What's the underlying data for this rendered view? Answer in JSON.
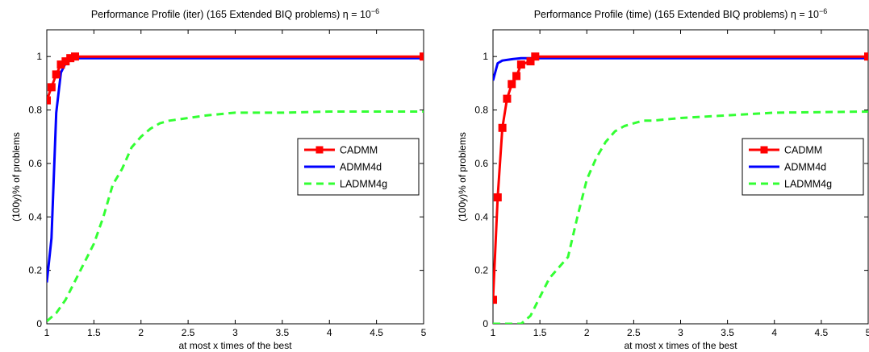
{
  "chart_data": [
    {
      "type": "line",
      "title": "Performance Profile (iter) (165 Extended BIQ problems) η = 10",
      "title_superscript": "−6",
      "xlabel": "at most x times of the best",
      "ylabel": "(100y)% of problems",
      "xlim": [
        1,
        5
      ],
      "ylim": [
        0,
        1.1
      ],
      "xticks": [
        "1",
        "1.5",
        "2",
        "2.5",
        "3",
        "3.5",
        "4",
        "4.5",
        "5"
      ],
      "yticks": [
        "0",
        "0.2",
        "0.4",
        "0.6",
        "0.8",
        "1"
      ],
      "xtick_values": [
        1,
        1.5,
        2,
        2.5,
        3,
        3.5,
        4,
        4.5,
        5
      ],
      "ytick_values": [
        0,
        0.2,
        0.4,
        0.6,
        0.8,
        1
      ],
      "grid": false,
      "legend_position": "middle-right",
      "series": [
        {
          "name": "CADMM",
          "color": "#ff0000",
          "marker": "square",
          "x": [
            1,
            1.05,
            1.1,
            1.15,
            1.2,
            1.25,
            1.3,
            5
          ],
          "y": [
            0.836,
            0.885,
            0.933,
            0.97,
            0.982,
            0.994,
            1.0,
            1.0
          ]
        },
        {
          "name": "ADMM4d",
          "color": "#0000ff",
          "marker": "none",
          "x": [
            1,
            1.05,
            1.1,
            1.15,
            1.2,
            1.25,
            1.3,
            5
          ],
          "y": [
            0.155,
            0.32,
            0.79,
            0.94,
            0.975,
            0.988,
            0.994,
            0.994
          ]
        },
        {
          "name": "LADMM4g",
          "color": "#33ff33",
          "marker": "none",
          "dashed": true,
          "x": [
            1,
            1.1,
            1.2,
            1.3,
            1.4,
            1.5,
            1.6,
            1.7,
            1.8,
            1.9,
            2.0,
            2.1,
            2.2,
            2.3,
            2.5,
            2.7,
            3.0,
            3.5,
            4.0,
            5.0
          ],
          "y": [
            0.01,
            0.04,
            0.09,
            0.16,
            0.23,
            0.3,
            0.4,
            0.52,
            0.58,
            0.66,
            0.7,
            0.73,
            0.75,
            0.76,
            0.77,
            0.78,
            0.79,
            0.79,
            0.794,
            0.794
          ]
        }
      ]
    },
    {
      "type": "line",
      "title": "Performance Profile (time) (165 Extended BIQ problems) η = 10",
      "title_superscript": "−6",
      "xlabel": "at most x times of the best",
      "ylabel": "(100y)% of problems",
      "xlim": [
        1,
        5
      ],
      "ylim": [
        0,
        1.1
      ],
      "xticks": [
        "1",
        "1.5",
        "2",
        "2.5",
        "3",
        "3.5",
        "4",
        "4.5",
        "5"
      ],
      "yticks": [
        "0",
        "0.2",
        "0.4",
        "0.6",
        "0.8",
        "1"
      ],
      "xtick_values": [
        1,
        1.5,
        2,
        2.5,
        3,
        3.5,
        4,
        4.5,
        5
      ],
      "ytick_values": [
        0,
        0.2,
        0.4,
        0.6,
        0.8,
        1
      ],
      "grid": false,
      "legend_position": "middle-right",
      "series": [
        {
          "name": "CADMM",
          "color": "#ff0000",
          "marker": "square",
          "x": [
            1,
            1.05,
            1.1,
            1.15,
            1.2,
            1.25,
            1.3,
            1.4,
            1.45,
            5
          ],
          "y": [
            0.09,
            0.473,
            0.733,
            0.842,
            0.897,
            0.927,
            0.97,
            0.982,
            1.0,
            1.0
          ]
        },
        {
          "name": "ADMM4d",
          "color": "#0000ff",
          "marker": "none",
          "x": [
            1,
            1.05,
            1.1,
            1.2,
            1.3,
            1.4,
            5
          ],
          "y": [
            0.91,
            0.975,
            0.985,
            0.99,
            0.994,
            0.994,
            0.994
          ]
        },
        {
          "name": "LADMM4g",
          "color": "#33ff33",
          "marker": "none",
          "dashed": true,
          "x": [
            1,
            1.3,
            1.4,
            1.5,
            1.6,
            1.7,
            1.8,
            1.9,
            2.0,
            2.1,
            2.2,
            2.3,
            2.4,
            2.5,
            2.6,
            2.7,
            3.0,
            3.5,
            4.0,
            5.0
          ],
          "y": [
            0.0,
            0.0,
            0.03,
            0.1,
            0.17,
            0.21,
            0.25,
            0.4,
            0.54,
            0.62,
            0.68,
            0.72,
            0.74,
            0.75,
            0.76,
            0.76,
            0.77,
            0.78,
            0.79,
            0.794
          ]
        }
      ]
    }
  ]
}
